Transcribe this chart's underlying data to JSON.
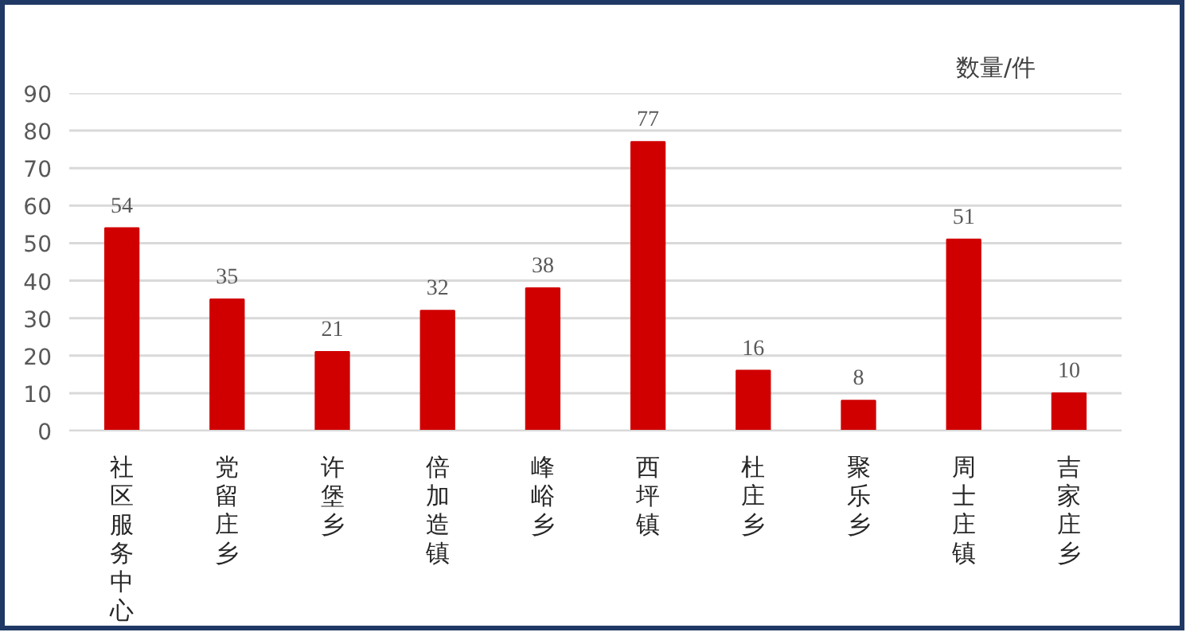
{
  "chart_data": {
    "type": "bar",
    "ylabel": "数量/件",
    "categories": [
      "社区服务中心",
      "党留庄乡",
      "许堡乡",
      "倍加造镇",
      "峰峪乡",
      "西坪镇",
      "杜庄乡",
      "聚乐乡",
      "周士庄镇",
      "吉家庄乡"
    ],
    "values": [
      54,
      35,
      21,
      32,
      38,
      77,
      16,
      8,
      51,
      10
    ],
    "color": "#d00000",
    "ylim": [
      0,
      90
    ],
    "yticks": [
      0,
      10,
      20,
      30,
      40,
      50,
      60,
      70,
      80,
      90
    ],
    "grid": "y",
    "data_labels": true
  }
}
